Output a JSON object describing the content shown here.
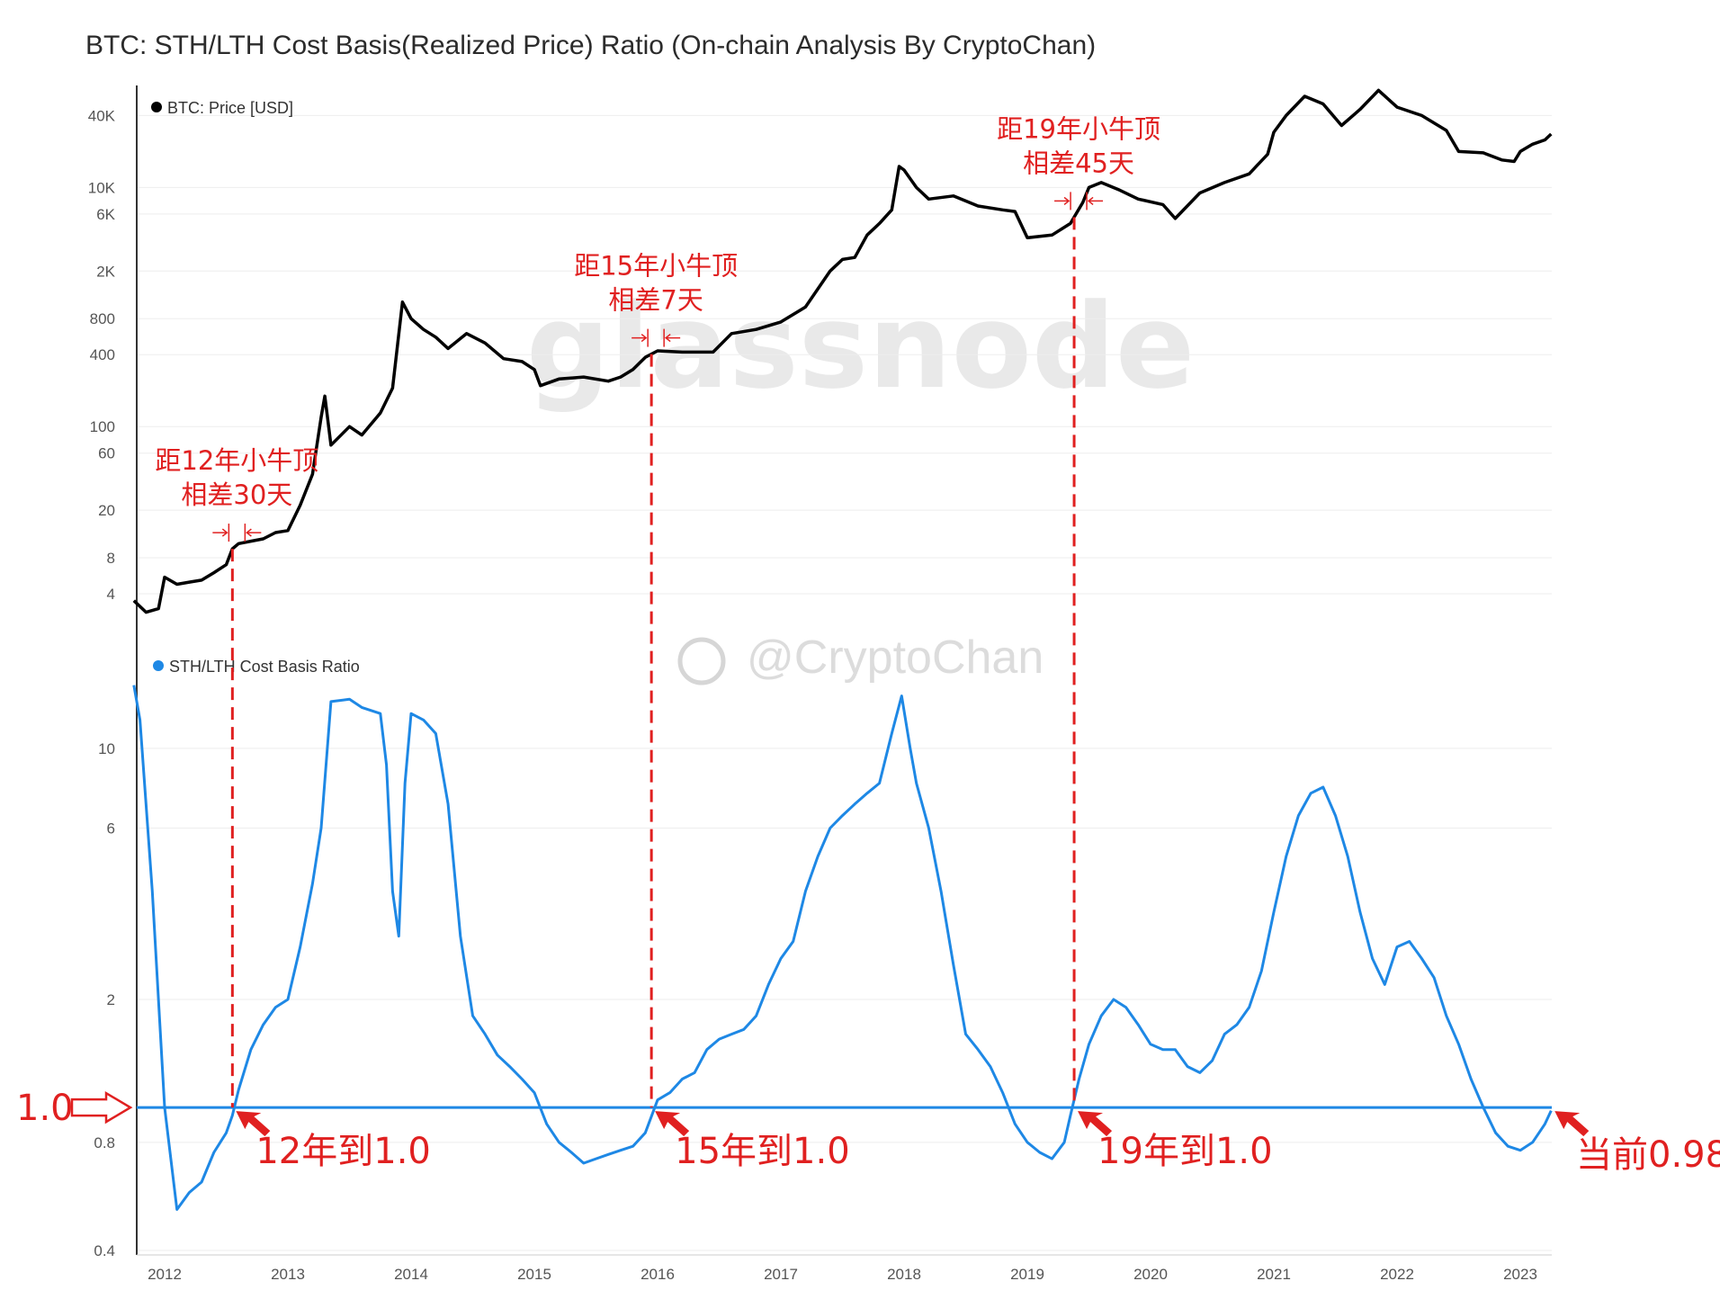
{
  "title": "BTC: STH/LTH Cost Basis(Realized Price) Ratio (On-chain Analysis By CryptoChan)",
  "watermark": "glassnode",
  "watermark_handle": "@CryptoChan",
  "colors": {
    "price": "#000000",
    "ratio": "#1e88e5",
    "annotation": "#e02020",
    "grid": "#eeeeee"
  },
  "chart_data": [
    {
      "type": "line",
      "legend": "BTC: Price [USD]",
      "y_scale": "log",
      "ylim": [
        2,
        60000
      ],
      "y_ticks": [
        {
          "value": 4,
          "label": "4"
        },
        {
          "value": 8,
          "label": "8"
        },
        {
          "value": 20,
          "label": "20"
        },
        {
          "value": 60,
          "label": "60"
        },
        {
          "value": 100,
          "label": "100"
        },
        {
          "value": 400,
          "label": "400"
        },
        {
          "value": 800,
          "label": "800"
        },
        {
          "value": 2000,
          "label": "2K"
        },
        {
          "value": 6000,
          "label": "6K"
        },
        {
          "value": 10000,
          "label": "10K"
        },
        {
          "value": 40000,
          "label": "40K"
        }
      ],
      "x": [
        2011.75,
        2011.85,
        2011.95,
        2012.0,
        2012.1,
        2012.2,
        2012.3,
        2012.4,
        2012.5,
        2012.55,
        2012.6,
        2012.7,
        2012.8,
        2012.9,
        2013.0,
        2013.1,
        2013.2,
        2013.27,
        2013.3,
        2013.35,
        2013.5,
        2013.6,
        2013.75,
        2013.85,
        2013.93,
        2014.0,
        2014.1,
        2014.2,
        2014.3,
        2014.45,
        2014.6,
        2014.75,
        2014.9,
        2015.0,
        2015.05,
        2015.2,
        2015.4,
        2015.6,
        2015.7,
        2015.8,
        2015.9,
        2016.0,
        2016.2,
        2016.45,
        2016.6,
        2016.8,
        2017.0,
        2017.2,
        2017.4,
        2017.5,
        2017.6,
        2017.7,
        2017.8,
        2017.9,
        2017.96,
        2018.0,
        2018.1,
        2018.2,
        2018.4,
        2018.6,
        2018.8,
        2018.9,
        2019.0,
        2019.2,
        2019.35,
        2019.45,
        2019.5,
        2019.6,
        2019.75,
        2019.9,
        2020.1,
        2020.2,
        2020.4,
        2020.6,
        2020.8,
        2020.95,
        2021.0,
        2021.1,
        2021.25,
        2021.4,
        2021.55,
        2021.7,
        2021.85,
        2022.0,
        2022.2,
        2022.4,
        2022.5,
        2022.7,
        2022.85,
        2022.95,
        2023.0,
        2023.1,
        2023.2,
        2023.25
      ],
      "y": [
        3.5,
        2.8,
        3.0,
        5.5,
        4.8,
        5.0,
        5.2,
        6.0,
        7.0,
        9.5,
        10.5,
        11.0,
        11.5,
        13.0,
        13.5,
        22,
        40,
        120,
        180,
        70,
        100,
        85,
        130,
        210,
        1100,
        800,
        650,
        560,
        450,
        600,
        500,
        370,
        350,
        300,
        220,
        250,
        260,
        240,
        260,
        300,
        380,
        430,
        420,
        420,
        600,
        650,
        750,
        1000,
        2000,
        2500,
        2600,
        4000,
        5000,
        6500,
        15000,
        14000,
        10000,
        8000,
        8500,
        7000,
        6500,
        6300,
        3800,
        4000,
        5000,
        7500,
        10000,
        11000,
        9500,
        8000,
        7200,
        5500,
        9000,
        11000,
        13000,
        19000,
        29000,
        40000,
        58000,
        50000,
        33000,
        45000,
        65000,
        47000,
        40000,
        30000,
        20000,
        19500,
        17000,
        16500,
        20000,
        23000,
        25000,
        28000
      ]
    },
    {
      "type": "line",
      "legend": "STH/LTH Cost Basis Ratio",
      "y_scale": "log",
      "ylim": [
        0.4,
        18
      ],
      "y_ticks": [
        {
          "value": 0.4,
          "label": "0.4"
        },
        {
          "value": 0.8,
          "label": "0.8"
        },
        {
          "value": 2,
          "label": "2"
        },
        {
          "value": 6,
          "label": "6"
        },
        {
          "value": 10,
          "label": "10"
        }
      ],
      "x": [
        2011.75,
        2011.8,
        2011.9,
        2012.0,
        2012.1,
        2012.2,
        2012.3,
        2012.4,
        2012.5,
        2012.55,
        2012.6,
        2012.7,
        2012.8,
        2012.9,
        2013.0,
        2013.1,
        2013.2,
        2013.27,
        2013.35,
        2013.5,
        2013.6,
        2013.75,
        2013.8,
        2013.85,
        2013.9,
        2013.95,
        2014.0,
        2014.1,
        2014.2,
        2014.3,
        2014.4,
        2014.5,
        2014.6,
        2014.7,
        2014.8,
        2014.9,
        2015.0,
        2015.1,
        2015.2,
        2015.3,
        2015.4,
        2015.5,
        2015.6,
        2015.7,
        2015.8,
        2015.9,
        2016.0,
        2016.1,
        2016.2,
        2016.3,
        2016.4,
        2016.5,
        2016.6,
        2016.7,
        2016.8,
        2016.9,
        2017.0,
        2017.1,
        2017.2,
        2017.3,
        2017.4,
        2017.5,
        2017.6,
        2017.7,
        2017.8,
        2017.9,
        2017.98,
        2018.05,
        2018.1,
        2018.2,
        2018.3,
        2018.4,
        2018.5,
        2018.6,
        2018.7,
        2018.8,
        2018.9,
        2019.0,
        2019.1,
        2019.2,
        2019.3,
        2019.35,
        2019.42,
        2019.5,
        2019.6,
        2019.7,
        2019.8,
        2019.9,
        2020.0,
        2020.1,
        2020.2,
        2020.3,
        2020.4,
        2020.5,
        2020.6,
        2020.7,
        2020.8,
        2020.9,
        2021.0,
        2021.1,
        2021.2,
        2021.3,
        2021.4,
        2021.5,
        2021.6,
        2021.7,
        2021.8,
        2021.9,
        2022.0,
        2022.1,
        2022.2,
        2022.3,
        2022.4,
        2022.5,
        2022.6,
        2022.7,
        2022.8,
        2022.9,
        2023.0,
        2023.1,
        2023.2,
        2023.25
      ],
      "y": [
        15,
        12,
        4,
        1.0,
        0.52,
        0.58,
        0.62,
        0.75,
        0.85,
        0.95,
        1.12,
        1.45,
        1.7,
        1.9,
        2.0,
        2.8,
        4.2,
        6.0,
        13.5,
        13.7,
        13.0,
        12.5,
        9,
        4,
        3.0,
        8,
        12.5,
        12,
        11,
        7,
        3,
        1.8,
        1.6,
        1.4,
        1.3,
        1.2,
        1.1,
        0.9,
        0.8,
        0.75,
        0.7,
        0.72,
        0.74,
        0.76,
        0.78,
        0.85,
        1.05,
        1.1,
        1.2,
        1.25,
        1.45,
        1.55,
        1.6,
        1.65,
        1.8,
        2.2,
        2.6,
        2.9,
        4.0,
        5.0,
        6.0,
        6.5,
        7.0,
        7.5,
        8.0,
        11.0,
        14.0,
        10,
        8.0,
        6.0,
        4.0,
        2.5,
        1.6,
        1.45,
        1.3,
        1.1,
        0.9,
        0.8,
        0.75,
        0.72,
        0.8,
        0.95,
        1.2,
        1.5,
        1.8,
        2.0,
        1.9,
        1.7,
        1.5,
        1.45,
        1.45,
        1.3,
        1.25,
        1.35,
        1.6,
        1.7,
        1.9,
        2.4,
        3.5,
        5.0,
        6.5,
        7.5,
        7.8,
        6.5,
        5.0,
        3.5,
        2.6,
        2.2,
        2.8,
        2.9,
        2.6,
        2.3,
        1.8,
        1.5,
        1.2,
        1.0,
        0.85,
        0.78,
        0.76,
        0.8,
        0.9,
        0.98
      ]
    }
  ],
  "x_ticks": [
    "2012",
    "2013",
    "2014",
    "2015",
    "2016",
    "2017",
    "2018",
    "2019",
    "2020",
    "2021",
    "2022",
    "2023"
  ],
  "threshold": {
    "value": 1.0,
    "label": "1.0"
  },
  "events": [
    {
      "year": 2012.55,
      "top_lines": [
        "距12年小牛顶",
        "相差30天"
      ],
      "bottom_label": "12年到1.0"
    },
    {
      "year": 2015.95,
      "top_lines": [
        "距15年小牛顶",
        "相差7天"
      ],
      "bottom_label": "15年到1.0"
    },
    {
      "year": 2019.38,
      "top_lines": [
        "距19年小牛顶",
        "相差45天"
      ],
      "bottom_label": "19年到1.0"
    }
  ],
  "current_label": "当前0.98"
}
